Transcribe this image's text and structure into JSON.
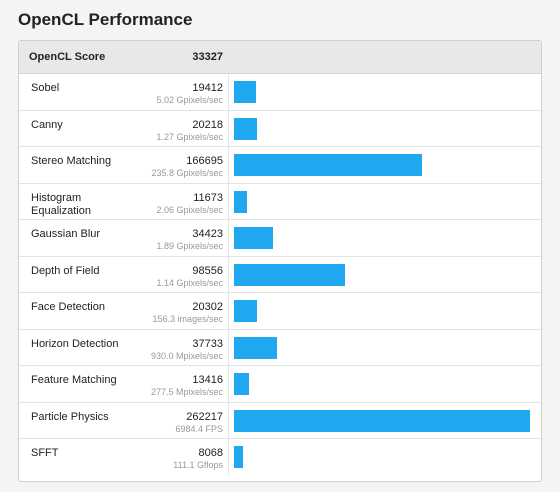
{
  "title": "OpenCL Performance",
  "header": {
    "label": "OpenCL Score",
    "value": "33327"
  },
  "colors": {
    "bar": "#1fa7ef",
    "header_bg": "#e8e8e8"
  },
  "max_score": 262217,
  "rows": [
    {
      "name": "Sobel",
      "score": "19412",
      "rate": "5.02 Gpixels/sec",
      "value": 19412
    },
    {
      "name": "Canny",
      "score": "20218",
      "rate": "1.27 Gpixels/sec",
      "value": 20218
    },
    {
      "name": "Stereo Matching",
      "score": "166695",
      "rate": "235.8 Gpixels/sec",
      "value": 166695
    },
    {
      "name": "Histogram Equalization",
      "score": "11673",
      "rate": "2.06 Gpixels/sec",
      "value": 11673
    },
    {
      "name": "Gaussian Blur",
      "score": "34423",
      "rate": "1.89 Gpixels/sec",
      "value": 34423
    },
    {
      "name": "Depth of Field",
      "score": "98556",
      "rate": "1.14 Gpixels/sec",
      "value": 98556
    },
    {
      "name": "Face Detection",
      "score": "20302",
      "rate": "156.3 images/sec",
      "value": 20302
    },
    {
      "name": "Horizon Detection",
      "score": "37733",
      "rate": "930.0 Mpixels/sec",
      "value": 37733
    },
    {
      "name": "Feature Matching",
      "score": "13416",
      "rate": "277.5 Mpixels/sec",
      "value": 13416
    },
    {
      "name": "Particle Physics",
      "score": "262217",
      "rate": "6984.4 FPS",
      "value": 262217
    },
    {
      "name": "SFFT",
      "score": "8068",
      "rate": "111.1 Gflops",
      "value": 8068
    }
  ]
}
